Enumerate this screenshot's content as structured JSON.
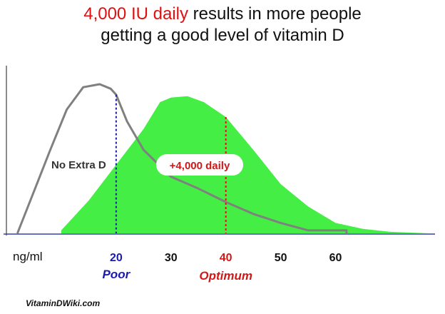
{
  "title": {
    "highlight": "4,000 IU daily",
    "rest_line1": " results in more people",
    "line2": "getting a good level of vitamin D"
  },
  "colors": {
    "accent_red": "#e01010",
    "poor_blue": "#1a1ab0",
    "optimum_red": "#d01818",
    "fill_green": "#44ee44",
    "curve_gray": "#808080"
  },
  "chart_data": {
    "type": "area",
    "title": "4,000 IU daily results in more people getting a good level of vitamin D",
    "xlabel": "ng/ml",
    "ylabel": "",
    "xlim": [
      0,
      78
    ],
    "ylim": [
      0,
      100
    ],
    "x_ticks": [
      20,
      30,
      40,
      50,
      60
    ],
    "x_tick_labels": [
      "20",
      "30",
      "40",
      "50",
      "60"
    ],
    "series": [
      {
        "name": "No Extra D",
        "style": "gray line",
        "x": [
          2,
          5,
          8,
          11,
          14,
          17,
          19,
          20,
          22,
          25,
          30,
          35,
          40,
          45,
          50,
          55,
          60,
          62
        ],
        "y": [
          0,
          28,
          56,
          83,
          98,
          100,
          97,
          93,
          75,
          56,
          38,
          30,
          21,
          13,
          7,
          2,
          2,
          2
        ]
      },
      {
        "name": "+4,000 daily",
        "style": "green area",
        "x": [
          10,
          15,
          20,
          25,
          28,
          30,
          33,
          36,
          40,
          45,
          50,
          55,
          60,
          65,
          70,
          77
        ],
        "y": [
          2,
          22,
          46,
          70,
          88,
          91,
          92,
          88,
          78,
          56,
          33,
          18,
          7,
          3,
          1,
          0
        ]
      }
    ],
    "annotations": [
      {
        "text": "No Extra D",
        "x": 13,
        "y": 52
      },
      {
        "text": "+4,000 daily",
        "x": 38,
        "y": 52
      }
    ],
    "reference_lines": [
      {
        "x": 20,
        "label": "Poor",
        "color": "#1a1ab0",
        "style": "dotted"
      },
      {
        "x": 40,
        "label": "Optimum",
        "color": "#d01818",
        "style": "dotted"
      }
    ]
  },
  "credit": "VitaminDWiki.com"
}
